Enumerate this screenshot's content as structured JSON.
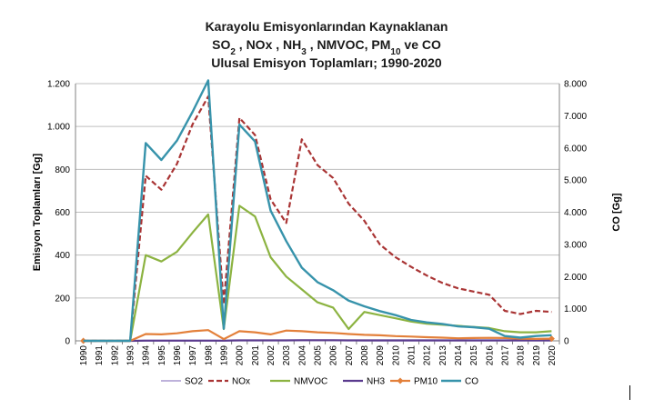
{
  "chart_data": {
    "type": "line",
    "title_lines": [
      [
        {
          "t": "Karayolu Emisyonlarından Kaynaklanan"
        }
      ],
      [
        {
          "t": "SO"
        },
        {
          "t": "2",
          "sub": true
        },
        {
          "t": " , NOx , NH"
        },
        {
          "t": "3",
          "sub": true
        },
        {
          "t": " , NMVOC, PM"
        },
        {
          "t": "10",
          "sub": true
        },
        {
          "t": " ve CO"
        }
      ],
      [
        {
          "t": "Ulusal Emisyon Toplamları; 1990-2020"
        }
      ]
    ],
    "ylabel": "Emisyon Toplamları [Gg]",
    "y2label": "CO [Gg]",
    "x": [
      "1990",
      "1991",
      "1992",
      "1993",
      "1994",
      "1995",
      "1996",
      "1997",
      "1998",
      "1999",
      "2000",
      "2001",
      "2002",
      "2003",
      "2004",
      "2005",
      "2006",
      "2007",
      "2008",
      "2009",
      "2010",
      "2011",
      "2012",
      "2013",
      "2014",
      "2015",
      "2016",
      "2017",
      "2018",
      "2019",
      "2020"
    ],
    "ylim": [
      0,
      1200
    ],
    "yticks": [
      0,
      200,
      400,
      600,
      800,
      1000,
      1200
    ],
    "ytick_labels": [
      "0",
      "200",
      "400",
      "600",
      "800",
      "1.000",
      "1.200"
    ],
    "y2lim": [
      0,
      8000
    ],
    "y2ticks": [
      0,
      1000,
      2000,
      3000,
      4000,
      5000,
      6000,
      7000,
      8000
    ],
    "y2tick_labels": [
      "0",
      "1.000",
      "2.000",
      "3.000",
      "4.000",
      "5.000",
      "6.000",
      "7.000",
      "8.000"
    ],
    "grid": true,
    "legend_position": "bottom",
    "series": [
      {
        "name": "SO2",
        "axis": "left",
        "color": "#b4a7d6",
        "dash": "solid",
        "width": 1.8,
        "marker": "none",
        "values": [
          0,
          0,
          0,
          0,
          2,
          2,
          2,
          2,
          2,
          1,
          2,
          2,
          2,
          2,
          2,
          2,
          2,
          2,
          1,
          1,
          1,
          1,
          1,
          1,
          1,
          1,
          1,
          1,
          1,
          1,
          1
        ]
      },
      {
        "name": "NOx",
        "axis": "left",
        "color": "#a93434",
        "dash": "dashed",
        "width": 2.2,
        "marker": "none",
        "values": [
          0,
          0,
          0,
          0,
          770,
          705,
          825,
          1010,
          1140,
          170,
          1040,
          960,
          660,
          550,
          940,
          820,
          760,
          640,
          560,
          450,
          390,
          345,
          305,
          270,
          245,
          230,
          215,
          140,
          125,
          140,
          135
        ]
      },
      {
        "name": "NMVOC",
        "axis": "left",
        "color": "#8cb341",
        "dash": "solid",
        "width": 2.2,
        "marker": "none",
        "values": [
          0,
          0,
          0,
          0,
          400,
          370,
          415,
          505,
          590,
          55,
          630,
          580,
          390,
          300,
          240,
          180,
          155,
          55,
          135,
          120,
          105,
          90,
          80,
          75,
          70,
          65,
          60,
          45,
          40,
          40,
          45
        ]
      },
      {
        "name": "NH3",
        "axis": "left",
        "color": "#5a3a8e",
        "dash": "solid",
        "width": 2.2,
        "marker": "none",
        "values": [
          0,
          0,
          0,
          0,
          1,
          1,
          1,
          1,
          1,
          1,
          2,
          2,
          2,
          2,
          3,
          3,
          3,
          2,
          2,
          2,
          2,
          2,
          2,
          2,
          2,
          2,
          2,
          2,
          2,
          2,
          2
        ]
      },
      {
        "name": "PM10",
        "axis": "left",
        "color": "#e3803a",
        "dash": "solid",
        "width": 2.2,
        "marker": "diamond",
        "values": [
          0,
          0,
          0,
          0,
          32,
          30,
          35,
          45,
          50,
          8,
          45,
          40,
          30,
          48,
          45,
          40,
          37,
          32,
          28,
          26,
          22,
          20,
          17,
          15,
          12,
          13,
          14,
          13,
          10,
          9,
          10
        ]
      },
      {
        "name": "CO",
        "axis": "right",
        "color": "#3793ab",
        "dash": "solid",
        "width": 2.4,
        "marker": "none",
        "values": [
          0,
          0,
          0,
          0,
          6150,
          5625,
          6225,
          7125,
          8100,
          375,
          6725,
          6200,
          4050,
          3100,
          2275,
          1825,
          1575,
          1250,
          1075,
          925,
          800,
          650,
          575,
          525,
          450,
          425,
          375,
          150,
          100,
          150,
          175
        ]
      }
    ]
  }
}
